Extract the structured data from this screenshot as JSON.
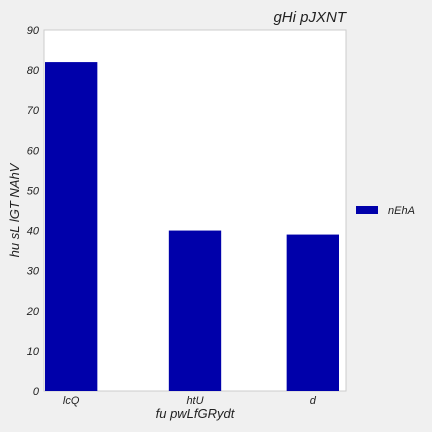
{
  "chart_data": {
    "type": "bar",
    "title": "gHi pJXNT",
    "xlabel": "fu pwLfGRydt",
    "ylabel": "hu sL lGT NAhV",
    "categories": [
      "lcQ",
      "htU",
      "d"
    ],
    "series": [
      {
        "name": "nEhA",
        "values": [
          82,
          40,
          39
        ],
        "color": "#0000aa"
      }
    ],
    "ylim": [
      0,
      90
    ],
    "yticks": [
      0,
      10,
      20,
      30,
      40,
      50,
      60,
      70,
      80,
      90
    ],
    "grid": false,
    "legend_position": "right"
  }
}
